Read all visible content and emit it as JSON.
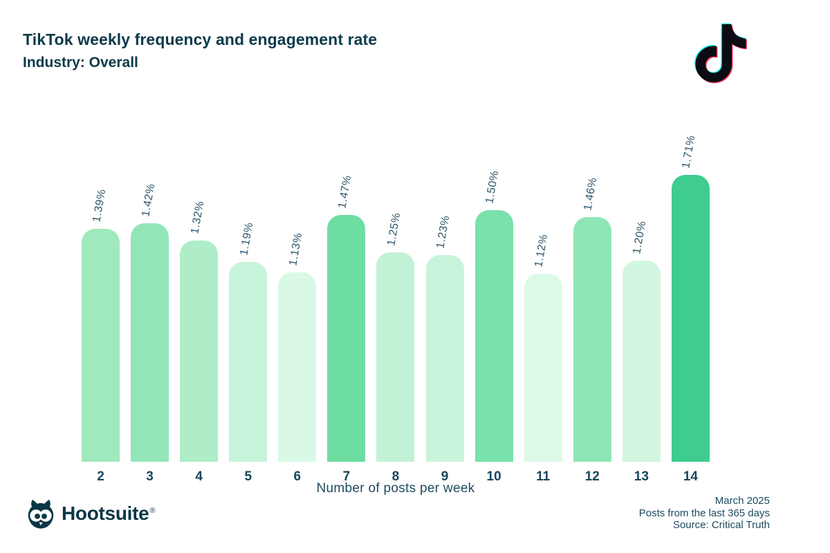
{
  "header": {
    "title": "TikTok weekly frequency and engagement rate",
    "subtitle": "Industry: Overall"
  },
  "chart_data": {
    "type": "bar",
    "title": "TikTok weekly frequency and engagement rate",
    "subtitle": "Industry: Overall",
    "categories": [
      "2",
      "3",
      "4",
      "5",
      "6",
      "7",
      "8",
      "9",
      "10",
      "11",
      "12",
      "13",
      "14"
    ],
    "values": [
      1.39,
      1.42,
      1.32,
      1.19,
      1.13,
      1.47,
      1.25,
      1.23,
      1.5,
      1.12,
      1.46,
      1.2,
      1.71
    ],
    "value_labels": [
      "1.39%",
      "1.42%",
      "1.32%",
      "1.19%",
      "1.13%",
      "1.47%",
      "1.25%",
      "1.23%",
      "1.50%",
      "1.12%",
      "1.46%",
      "1.20%",
      "1.71%"
    ],
    "bar_colors": [
      "#9fe9bd",
      "#92e6b8",
      "#aeedc8",
      "#c6f3d9",
      "#d9f8e5",
      "#6edda2",
      "#c2f2d6",
      "#c8f4db",
      "#79e1aa",
      "#dcfae7",
      "#8ee6b6",
      "#d3f6e1",
      "#3ecd8e"
    ],
    "xlabel": "Number of posts per week",
    "ylabel": "",
    "unit": "%",
    "ylim": [
      0,
      1.77
    ],
    "grid": false,
    "legend": false,
    "value_label_rotation_deg": -80
  },
  "branding": {
    "hootsuite_wordmark": "Hootsuite",
    "registered_mark": "®",
    "tiktok_logo_name": "tiktok-logo",
    "hootsuite_logo_name": "hootsuite-owl-logo"
  },
  "footer": {
    "lines": [
      "March 2025",
      "Posts from the last 365 days",
      "Source: Critical Truth"
    ]
  },
  "colors": {
    "background": "#ffffff",
    "title_text": "#0d3a4b",
    "tick_text": "#17465b",
    "value_label_text": "#2d566c",
    "footer_text": "#1d4a60",
    "hootsuite_dark": "#0b3645",
    "max_bar_accent": "#3ecd8e",
    "tiktok_cyan": "#25f4ee",
    "tiktok_red": "#fe2c55",
    "tiktok_black": "#0b0d12"
  }
}
